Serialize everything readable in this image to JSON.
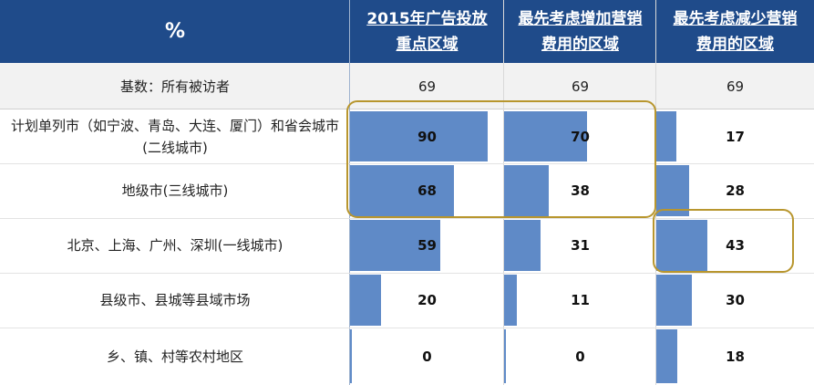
{
  "chart_data": {
    "type": "table",
    "header": {
      "corner": "%",
      "columns": [
        "2015年广告投放\n重点区域",
        "最先考虑增加营销\n费用的区域",
        "最先考虑减少营销\n费用的区域"
      ]
    },
    "base_row": {
      "label": "基数：所有被访者",
      "values": [
        "69",
        "69",
        "69"
      ]
    },
    "rows": [
      {
        "label": "计划单列市（如宁波、青岛、大连、厦门）和省会城市(二线城市)",
        "values": [
          90,
          70,
          17
        ]
      },
      {
        "label": "地级市(三线城市)",
        "values": [
          68,
          38,
          28
        ]
      },
      {
        "label": "北京、上海、广州、深圳(一线城市)",
        "values": [
          59,
          31,
          43
        ]
      },
      {
        "label": "县级市、县城等县域市场",
        "values": [
          20,
          11,
          30
        ]
      },
      {
        "label": "乡、镇、村等农村地区",
        "values": [
          0,
          0,
          18
        ]
      }
    ],
    "bar_color": "#5f8ac7",
    "header_color": "#1f4b8a",
    "highlight_color": "#b8962e",
    "highlights": [
      {
        "rows": [
          0,
          1
        ],
        "columns": [
          0,
          1
        ]
      },
      {
        "rows": [
          2
        ],
        "columns": [
          2
        ]
      }
    ]
  }
}
